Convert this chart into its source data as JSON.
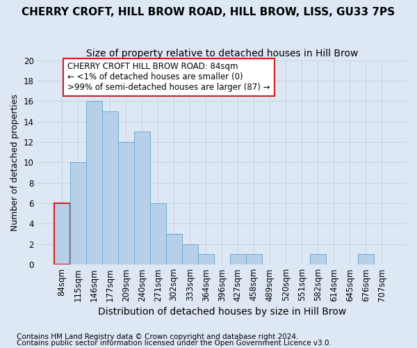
{
  "title": "CHERRY CROFT, HILL BROW ROAD, HILL BROW, LISS, GU33 7PS",
  "subtitle": "Size of property relative to detached houses in Hill Brow",
  "xlabel": "Distribution of detached houses by size in Hill Brow",
  "ylabel": "Number of detached properties",
  "footnote1": "Contains HM Land Registry data © Crown copyright and database right 2024.",
  "footnote2": "Contains public sector information licensed under the Open Government Licence v3.0.",
  "bin_labels": [
    "84sqm",
    "115sqm",
    "146sqm",
    "177sqm",
    "209sqm",
    "240sqm",
    "271sqm",
    "302sqm",
    "333sqm",
    "364sqm",
    "396sqm",
    "427sqm",
    "458sqm",
    "489sqm",
    "520sqm",
    "551sqm",
    "582sqm",
    "614sqm",
    "645sqm",
    "676sqm",
    "707sqm"
  ],
  "bar_values": [
    6,
    10,
    16,
    15,
    12,
    13,
    6,
    3,
    2,
    1,
    0,
    1,
    1,
    0,
    0,
    0,
    1,
    0,
    0,
    1,
    0
  ],
  "bar_color": "#b8cfe8",
  "bar_edge_color": "#6aaad4",
  "highlight_bar_index": 0,
  "highlight_color": "#cc2222",
  "annotation_text": "CHERRY CROFT HILL BROW ROAD: 84sqm\n← <1% of detached houses are smaller (0)\n>99% of semi-detached houses are larger (87) →",
  "annotation_box_color": "#ffffff",
  "annotation_box_edge_color": "#cc2222",
  "ylim": [
    0,
    20
  ],
  "yticks": [
    0,
    2,
    4,
    6,
    8,
    10,
    12,
    14,
    16,
    18,
    20
  ],
  "grid_color": "#c8d4e4",
  "background_color": "#dde8f4",
  "title_fontsize": 11,
  "subtitle_fontsize": 10,
  "ylabel_fontsize": 9,
  "xlabel_fontsize": 10,
  "tick_fontsize": 8.5,
  "annotation_fontsize": 8.5,
  "footnote_fontsize": 7.5
}
